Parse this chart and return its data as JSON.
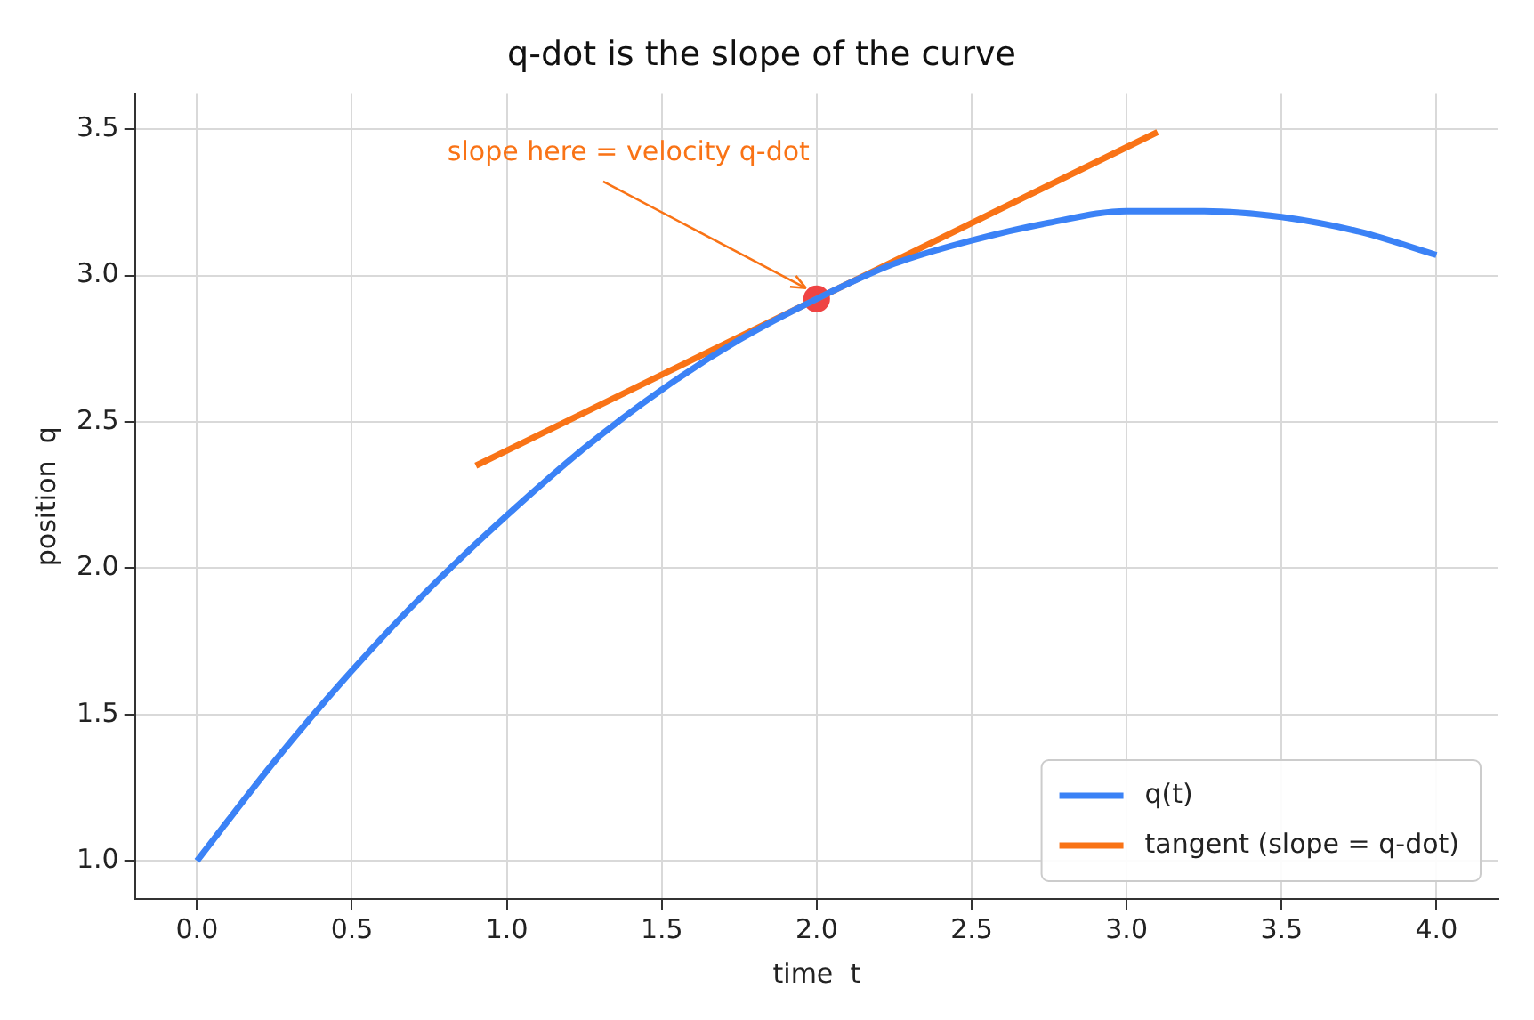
{
  "chart_data": {
    "type": "line",
    "title": "q-dot is the slope of the curve",
    "xlabel": "time  t",
    "ylabel": "position  q",
    "series": [
      {
        "name": "q(t)",
        "color": "#3b82f6",
        "x": [
          0,
          0.25,
          0.5,
          0.75,
          1,
          1.25,
          1.5,
          1.75,
          2,
          2.25,
          2.5,
          2.75,
          3,
          3.25,
          3.5,
          3.75,
          4
        ],
        "values": [
          1.0,
          1.34,
          1.65,
          1.93,
          2.18,
          2.41,
          2.61,
          2.78,
          2.92,
          3.04,
          3.12,
          3.18,
          3.22,
          3.22,
          3.2,
          3.15,
          3.07
        ]
      },
      {
        "name": "tangent (slope = q-dot)",
        "color": "#f97316",
        "x": [
          0.9,
          3.1
        ],
        "values": [
          2.35,
          3.49
        ]
      },
      {
        "type": "scatter",
        "color": "#ef4444",
        "x": [
          2
        ],
        "values": [
          2.92
        ],
        "marker": "circle"
      }
    ],
    "annotations": [
      {
        "text": "slope here = velocity q-dot",
        "x": 2,
        "y": 2.92
      }
    ],
    "xlim": [
      -0.2,
      4.2
    ],
    "ylim": [
      0.87,
      3.62
    ],
    "xticks": [
      {
        "value": 0,
        "label": "0.0"
      },
      0.5,
      {
        "value": 1,
        "label": "1.0"
      },
      1.5,
      {
        "value": 2,
        "label": "2.0"
      },
      2.5,
      {
        "value": 3,
        "label": "3.0"
      },
      3.5,
      {
        "value": 4,
        "label": "4.0"
      }
    ],
    "yticks": [
      {
        "value": 1,
        "label": "1.0"
      },
      1.5,
      {
        "value": 2,
        "label": "2.0"
      },
      2.5,
      {
        "value": 3,
        "label": "3.0"
      },
      3.5
    ],
    "grid": true,
    "legend": "bottom right",
    "line_style": "solid"
  }
}
